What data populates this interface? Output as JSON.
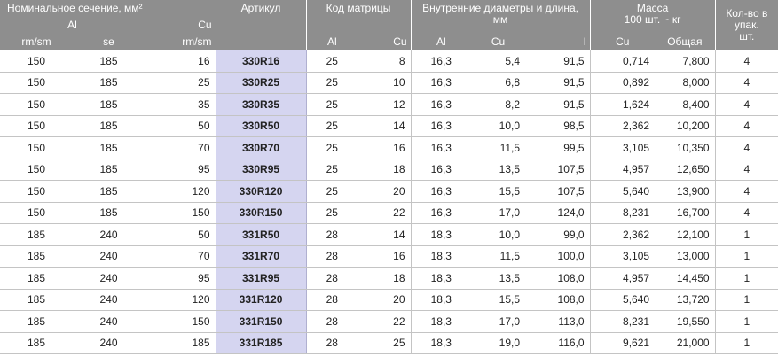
{
  "header": {
    "section": {
      "title": "Номинальное сечение, мм²",
      "al": "Al",
      "cu": "Cu",
      "cols": [
        "rm/sm",
        "se",
        "rm/sm"
      ]
    },
    "article": "Артикул",
    "die_code": {
      "title": "Код матрицы",
      "cols": [
        "Al",
        "Cu"
      ]
    },
    "diameters": {
      "title": "Внутренние диаметры и длина, мм",
      "cols": [
        "Al",
        "Cu",
        "l"
      ]
    },
    "mass": {
      "title": [
        "Масса",
        "100 шт. ~ кг"
      ],
      "cols": [
        "Cu",
        "Общая"
      ]
    },
    "qty": [
      "Кол-во в",
      "упак.",
      "шт."
    ]
  },
  "rows": [
    [
      "150",
      "185",
      "16",
      "330R16",
      "25",
      "8",
      "16,3",
      "5,4",
      "91,5",
      "0,714",
      "7,800",
      "4"
    ],
    [
      "150",
      "185",
      "25",
      "330R25",
      "25",
      "10",
      "16,3",
      "6,8",
      "91,5",
      "0,892",
      "8,000",
      "4"
    ],
    [
      "150",
      "185",
      "35",
      "330R35",
      "25",
      "12",
      "16,3",
      "8,2",
      "91,5",
      "1,624",
      "8,400",
      "4"
    ],
    [
      "150",
      "185",
      "50",
      "330R50",
      "25",
      "14",
      "16,3",
      "10,0",
      "98,5",
      "2,362",
      "10,200",
      "4"
    ],
    [
      "150",
      "185",
      "70",
      "330R70",
      "25",
      "16",
      "16,3",
      "11,5",
      "99,5",
      "3,105",
      "10,350",
      "4"
    ],
    [
      "150",
      "185",
      "95",
      "330R95",
      "25",
      "18",
      "16,3",
      "13,5",
      "107,5",
      "4,957",
      "12,650",
      "4"
    ],
    [
      "150",
      "185",
      "120",
      "330R120",
      "25",
      "20",
      "16,3",
      "15,5",
      "107,5",
      "5,640",
      "13,900",
      "4"
    ],
    [
      "150",
      "185",
      "150",
      "330R150",
      "25",
      "22",
      "16,3",
      "17,0",
      "124,0",
      "8,231",
      "16,700",
      "4"
    ],
    [
      "185",
      "240",
      "50",
      "331R50",
      "28",
      "14",
      "18,3",
      "10,0",
      "99,0",
      "2,362",
      "12,100",
      "1"
    ],
    [
      "185",
      "240",
      "70",
      "331R70",
      "28",
      "16",
      "18,3",
      "11,5",
      "100,0",
      "3,105",
      "13,000",
      "1"
    ],
    [
      "185",
      "240",
      "95",
      "331R95",
      "28",
      "18",
      "18,3",
      "13,5",
      "108,0",
      "4,957",
      "14,450",
      "1"
    ],
    [
      "185",
      "240",
      "120",
      "331R120",
      "28",
      "20",
      "18,3",
      "15,5",
      "108,0",
      "5,640",
      "13,720",
      "1"
    ],
    [
      "185",
      "240",
      "150",
      "331R150",
      "28",
      "22",
      "18,3",
      "17,0",
      "113,0",
      "8,231",
      "19,550",
      "1"
    ],
    [
      "185",
      "240",
      "185",
      "331R185",
      "28",
      "25",
      "18,3",
      "19,0",
      "116,0",
      "9,621",
      "21,000",
      "1"
    ]
  ]
}
